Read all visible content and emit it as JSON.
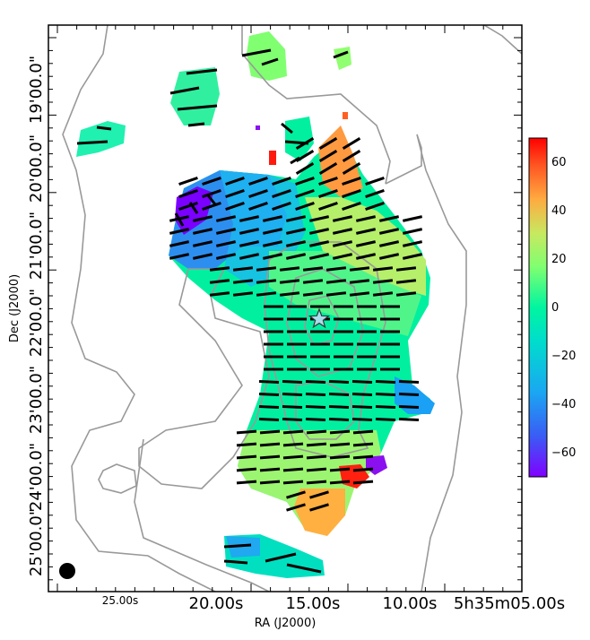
{
  "chart_data": {
    "type": "heatmap",
    "title": "",
    "xlabel": "RA (J2000)",
    "ylabel": "Dec (J2000)",
    "x_tick_labels": [
      "25.00s",
      "20.00s",
      "15.00s",
      "10.00s",
      "5h35m05.00s"
    ],
    "y_tick_labels": [
      "19'00.0\"",
      "20'00.0\"",
      "21'00.0\"",
      "22'00.0\"",
      "23'00.0\"",
      "24'00.0\"",
      "25'00.0\""
    ],
    "colorbar": {
      "colormap": "rainbow",
      "range": [
        -70,
        70
      ],
      "ticks": [
        60,
        40,
        20,
        0,
        -20,
        -40,
        -60
      ]
    },
    "colormap_stops": [
      "#8000ff",
      "#2c7ef7",
      "#00c4ff",
      "#00f0a0",
      "#80ff60",
      "#d0e050",
      "#ffaa40",
      "#ff4020",
      "#ff0000"
    ],
    "markers": [
      {
        "type": "star",
        "label": "",
        "ra_seconds": 14.9,
        "dec_arcmin": 21.8
      }
    ],
    "beam": {
      "shape": "circle"
    },
    "contours": {
      "color": "#999999",
      "levels": 6
    },
    "vector_color": "#000000"
  }
}
